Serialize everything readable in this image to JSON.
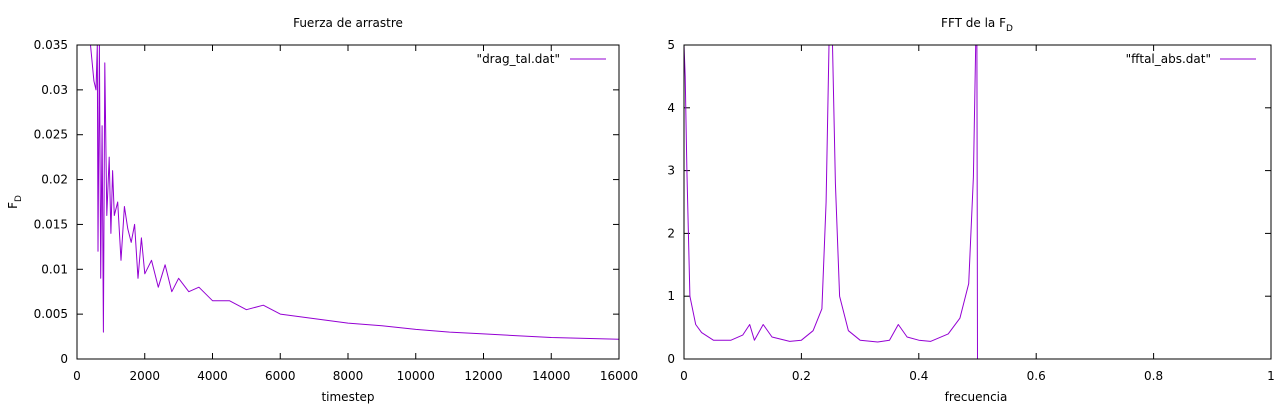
{
  "chart_data": [
    {
      "type": "line",
      "title": "Fuerza de arrastre",
      "xlabel": "timestep",
      "ylabel_main": "F",
      "ylabel_sub": "D",
      "xlim": [
        0,
        16000
      ],
      "ylim": [
        0,
        0.035
      ],
      "xticks": [
        0,
        2000,
        4000,
        6000,
        8000,
        10000,
        12000,
        14000,
        16000
      ],
      "xtick_labels": [
        "0",
        "2000",
        "4000",
        "6000",
        "8000",
        "10000",
        "12000",
        "14000",
        "16000"
      ],
      "yticks": [
        0,
        0.005,
        0.01,
        0.015,
        0.02,
        0.025,
        0.03,
        0.035
      ],
      "ytick_labels": [
        "0",
        "0.005",
        "0.01",
        "0.015",
        "0.02",
        "0.025",
        "0.03",
        "0.035"
      ],
      "legend_position": "top-right",
      "grid": false,
      "color": "#9400d3",
      "series": [
        {
          "name": "\"drag_tal.dat\"",
          "x": [
            400,
            500,
            560,
            600,
            620,
            660,
            700,
            740,
            780,
            820,
            880,
            950,
            1000,
            1050,
            1100,
            1200,
            1300,
            1400,
            1500,
            1600,
            1700,
            1800,
            1900,
            2000,
            2200,
            2400,
            2600,
            2800,
            3000,
            3300,
            3600,
            4000,
            4500,
            5000,
            5500,
            6000,
            7000,
            8000,
            9000,
            10000,
            11000,
            12000,
            13000,
            14000,
            15000,
            16000
          ],
          "y": [
            0.035,
            0.031,
            0.03,
            0.036,
            0.012,
            0.035,
            0.009,
            0.026,
            0.003,
            0.033,
            0.016,
            0.0225,
            0.014,
            0.021,
            0.016,
            0.0175,
            0.011,
            0.017,
            0.0145,
            0.013,
            0.015,
            0.009,
            0.0135,
            0.0095,
            0.011,
            0.008,
            0.0105,
            0.0075,
            0.009,
            0.0075,
            0.008,
            0.0065,
            0.0065,
            0.0055,
            0.006,
            0.005,
            0.0045,
            0.004,
            0.0037,
            0.0033,
            0.003,
            0.0028,
            0.0026,
            0.0024,
            0.0023,
            0.0022
          ]
        }
      ]
    },
    {
      "type": "line",
      "title_main": "FFT de la F",
      "title_sub": "D",
      "xlabel": "frecuencia",
      "xlim": [
        0,
        1
      ],
      "ylim": [
        0,
        5
      ],
      "xticks": [
        0,
        0.2,
        0.4,
        0.6,
        0.8,
        1
      ],
      "xtick_labels": [
        "0",
        "0.2",
        "0.4",
        "0.6",
        "0.8",
        "1"
      ],
      "yticks": [
        0,
        1,
        2,
        3,
        4,
        5
      ],
      "ytick_labels": [
        "0",
        "1",
        "2",
        "3",
        "4",
        "5"
      ],
      "legend_position": "top-right",
      "grid": false,
      "color": "#9400d3",
      "series": [
        {
          "name": "\"fftal_abs.dat\"",
          "x": [
            0,
            0.002,
            0.005,
            0.01,
            0.02,
            0.03,
            0.05,
            0.08,
            0.1,
            0.112,
            0.12,
            0.135,
            0.15,
            0.18,
            0.2,
            0.22,
            0.235,
            0.242,
            0.247,
            0.25,
            0.253,
            0.258,
            0.265,
            0.28,
            0.3,
            0.33,
            0.35,
            0.365,
            0.38,
            0.4,
            0.42,
            0.45,
            0.47,
            0.485,
            0.493,
            0.497,
            0.499,
            0.5,
            0.505,
            0.6,
            0.8,
            1
          ],
          "y": [
            5,
            4.5,
            3.0,
            1.0,
            0.55,
            0.42,
            0.3,
            0.3,
            0.38,
            0.55,
            0.3,
            0.55,
            0.35,
            0.28,
            0.3,
            0.45,
            0.8,
            2.5,
            5,
            5,
            5,
            2.8,
            1.0,
            0.45,
            0.3,
            0.27,
            0.3,
            0.55,
            0.35,
            0.3,
            0.28,
            0.4,
            0.65,
            1.2,
            2.9,
            5,
            5,
            0,
            0,
            0,
            0,
            0
          ]
        }
      ]
    }
  ]
}
